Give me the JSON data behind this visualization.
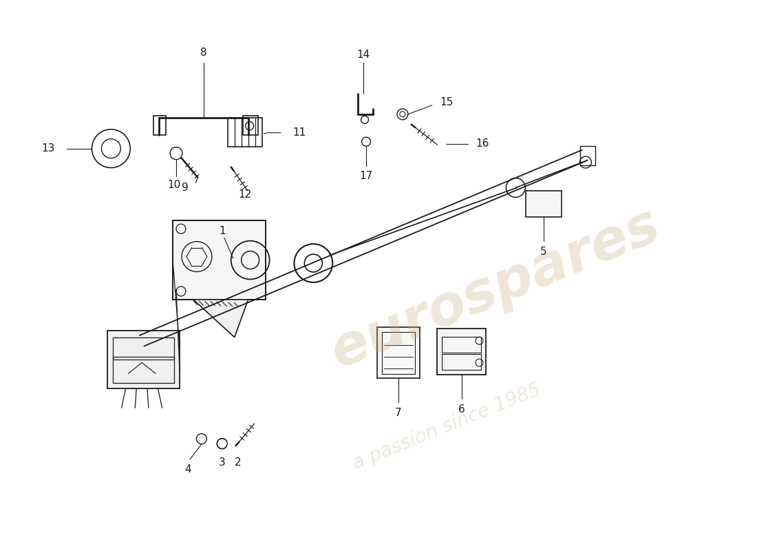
{
  "background_color": "#ffffff",
  "line_color": "#1a1a1a",
  "watermark_text1": "eurospares",
  "watermark_text2": "a passion since 1985",
  "watermark_color": "#c8b080"
}
